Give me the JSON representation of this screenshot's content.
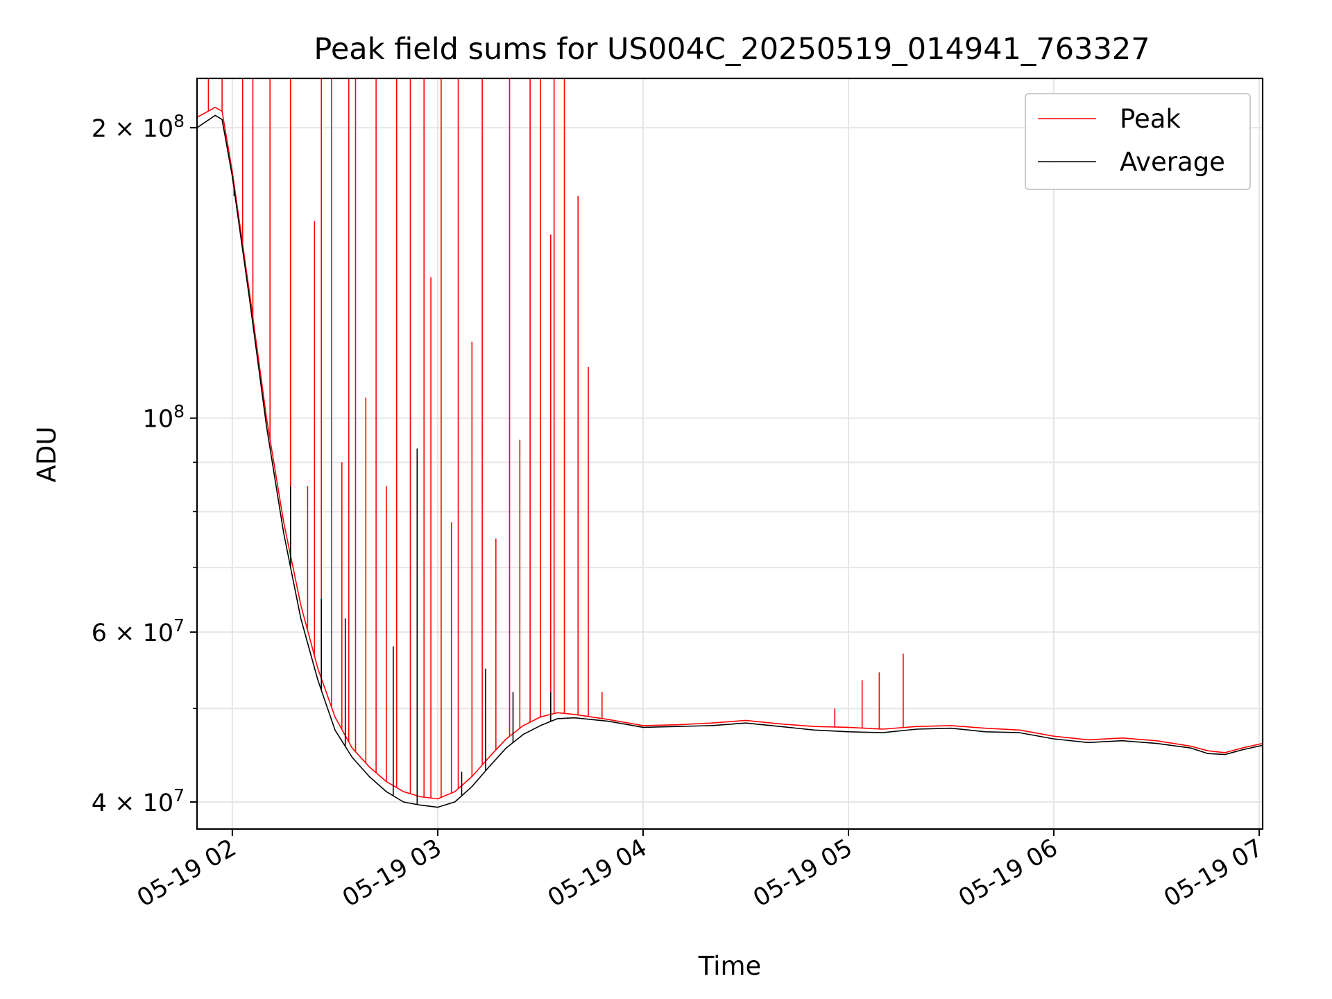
{
  "chart_data": {
    "type": "line",
    "title": "Peak field sums for US004C_20250519_014941_763327",
    "xlabel": "Time",
    "ylabel": "ADU",
    "yscale": "log",
    "xlim": [
      "2025-05-19 01:49:41",
      "2025-05-19 07:01:00"
    ],
    "ylim": [
      37500000,
      225000000
    ],
    "x_ticks": [
      {
        "t": "2025-05-19 02:00",
        "label": "05-19 02"
      },
      {
        "t": "2025-05-19 03:00",
        "label": "05-19 03"
      },
      {
        "t": "2025-05-19 04:00",
        "label": "05-19 04"
      },
      {
        "t": "2025-05-19 05:00",
        "label": "05-19 05"
      },
      {
        "t": "2025-05-19 06:00",
        "label": "05-19 06"
      },
      {
        "t": "2025-05-19 07:00",
        "label": "05-19 07"
      }
    ],
    "y_ticks_major": [
      {
        "v": 40000000,
        "base": "4 × 10",
        "exp": "7"
      },
      {
        "v": 60000000,
        "base": "6 × 10",
        "exp": "7"
      },
      {
        "v": 100000000,
        "base": "10",
        "exp": "8"
      },
      {
        "v": 200000000,
        "base": "2 × 10",
        "exp": "8"
      }
    ],
    "y_ticks_minor": [
      50000000,
      70000000,
      80000000,
      90000000
    ],
    "grid": true,
    "legend_position": "top-right",
    "series": [
      {
        "name": "Peak",
        "color": "#ff0000",
        "baseline": [
          [
            "2025-05-19 01:49:41",
            205000000
          ],
          [
            "2025-05-19 01:55",
            210000000
          ],
          [
            "2025-05-19 01:57",
            208000000
          ],
          [
            "2025-05-19 02:00",
            180000000
          ],
          [
            "2025-05-19 02:05",
            135000000
          ],
          [
            "2025-05-19 02:10",
            100000000
          ],
          [
            "2025-05-19 02:15",
            78000000
          ],
          [
            "2025-05-19 02:20",
            64000000
          ],
          [
            "2025-05-19 02:25",
            55000000
          ],
          [
            "2025-05-19 02:30",
            49000000
          ],
          [
            "2025-05-19 02:35",
            45500000
          ],
          [
            "2025-05-19 02:40",
            43500000
          ],
          [
            "2025-05-19 02:45",
            42000000
          ],
          [
            "2025-05-19 02:50",
            41000000
          ],
          [
            "2025-05-19 02:55",
            40500000
          ],
          [
            "2025-05-19 03:00",
            40300000
          ],
          [
            "2025-05-19 03:05",
            41000000
          ],
          [
            "2025-05-19 03:10",
            42500000
          ],
          [
            "2025-05-19 03:15",
            44500000
          ],
          [
            "2025-05-19 03:20",
            46500000
          ],
          [
            "2025-05-19 03:25",
            48000000
          ],
          [
            "2025-05-19 03:30",
            49000000
          ],
          [
            "2025-05-19 03:35",
            49500000
          ],
          [
            "2025-05-19 03:40",
            49300000
          ],
          [
            "2025-05-19 03:50",
            48700000
          ],
          [
            "2025-05-19 04:00",
            48000000
          ],
          [
            "2025-05-19 04:10",
            48100000
          ],
          [
            "2025-05-19 04:20",
            48300000
          ],
          [
            "2025-05-19 04:30",
            48600000
          ],
          [
            "2025-05-19 04:40",
            48200000
          ],
          [
            "2025-05-19 04:50",
            47900000
          ],
          [
            "2025-05-19 05:00",
            47800000
          ],
          [
            "2025-05-19 05:10",
            47600000
          ],
          [
            "2025-05-19 05:20",
            47900000
          ],
          [
            "2025-05-19 05:30",
            48000000
          ],
          [
            "2025-05-19 05:40",
            47700000
          ],
          [
            "2025-05-19 05:50",
            47500000
          ],
          [
            "2025-05-19 06:00",
            46800000
          ],
          [
            "2025-05-19 06:10",
            46400000
          ],
          [
            "2025-05-19 06:20",
            46600000
          ],
          [
            "2025-05-19 06:30",
            46300000
          ],
          [
            "2025-05-19 06:40",
            45700000
          ],
          [
            "2025-05-19 06:45",
            45200000
          ],
          [
            "2025-05-19 06:50",
            45000000
          ],
          [
            "2025-05-19 06:55",
            45500000
          ],
          [
            "2025-05-19 07:01",
            46000000
          ]
        ],
        "spikes": [
          [
            "2025-05-19 01:53",
            225000000
          ],
          [
            "2025-05-19 01:57",
            225000000
          ],
          [
            "2025-05-19 02:03",
            225000000
          ],
          [
            "2025-05-19 02:06",
            225000000
          ],
          [
            "2025-05-19 02:11",
            225000000
          ],
          [
            "2025-05-19 02:17",
            225000000
          ],
          [
            "2025-05-19 02:26",
            225000000
          ],
          [
            "2025-05-19 02:29",
            225000000
          ],
          [
            "2025-05-19 02:34",
            225000000
          ],
          [
            "2025-05-19 02:36",
            225000000
          ],
          [
            "2025-05-19 02:42",
            225000000
          ],
          [
            "2025-05-19 02:48",
            225000000
          ],
          [
            "2025-05-19 02:52",
            225000000
          ],
          [
            "2025-05-19 02:56",
            225000000
          ],
          [
            "2025-05-19 03:01",
            225000000
          ],
          [
            "2025-05-19 03:06",
            225000000
          ],
          [
            "2025-05-19 03:13",
            225000000
          ],
          [
            "2025-05-19 03:21",
            225000000
          ],
          [
            "2025-05-19 03:27",
            225000000
          ],
          [
            "2025-05-19 03:30",
            225000000
          ],
          [
            "2025-05-19 03:34",
            225000000
          ],
          [
            "2025-05-19 03:37",
            225000000
          ],
          [
            "2025-05-19 02:24",
            160000000
          ],
          [
            "2025-05-19 02:39",
            105000000
          ],
          [
            "2025-05-19 02:58",
            140000000
          ],
          [
            "2025-05-19 03:10",
            120000000
          ],
          [
            "2025-05-19 03:24",
            95000000
          ],
          [
            "2025-05-19 03:33",
            155000000
          ],
          [
            "2025-05-19 03:41",
            170000000
          ],
          [
            "2025-05-19 03:44",
            113000000
          ],
          [
            "2025-05-19 02:22",
            85000000
          ],
          [
            "2025-05-19 02:32",
            90000000
          ],
          [
            "2025-05-19 02:45",
            85000000
          ],
          [
            "2025-05-19 03:04",
            78000000
          ],
          [
            "2025-05-19 03:17",
            75000000
          ],
          [
            "2025-05-19 03:48",
            52000000
          ],
          [
            "2025-05-19 04:56",
            50000000
          ],
          [
            "2025-05-19 05:04",
            53500000
          ],
          [
            "2025-05-19 05:09",
            54500000
          ],
          [
            "2025-05-19 05:16",
            57000000
          ]
        ]
      },
      {
        "name": "Average",
        "color": "#000000",
        "baseline": [
          [
            "2025-05-19 01:49:41",
            200000000
          ],
          [
            "2025-05-19 01:55",
            206000000
          ],
          [
            "2025-05-19 01:57",
            204000000
          ],
          [
            "2025-05-19 02:00",
            178000000
          ],
          [
            "2025-05-19 02:05",
            133000000
          ],
          [
            "2025-05-19 02:10",
            98000000
          ],
          [
            "2025-05-19 02:15",
            76000000
          ],
          [
            "2025-05-19 02:20",
            62000000
          ],
          [
            "2025-05-19 02:25",
            53500000
          ],
          [
            "2025-05-19 02:30",
            47500000
          ],
          [
            "2025-05-19 02:35",
            44500000
          ],
          [
            "2025-05-19 02:40",
            42500000
          ],
          [
            "2025-05-19 02:45",
            41000000
          ],
          [
            "2025-05-19 02:50",
            40000000
          ],
          [
            "2025-05-19 02:55",
            39700000
          ],
          [
            "2025-05-19 03:00",
            39500000
          ],
          [
            "2025-05-19 03:05",
            40000000
          ],
          [
            "2025-05-19 03:10",
            41500000
          ],
          [
            "2025-05-19 03:15",
            43500000
          ],
          [
            "2025-05-19 03:20",
            45500000
          ],
          [
            "2025-05-19 03:25",
            47000000
          ],
          [
            "2025-05-19 03:30",
            48000000
          ],
          [
            "2025-05-19 03:35",
            48800000
          ],
          [
            "2025-05-19 03:40",
            48900000
          ],
          [
            "2025-05-19 03:50",
            48500000
          ],
          [
            "2025-05-19 04:00",
            47800000
          ],
          [
            "2025-05-19 04:10",
            47900000
          ],
          [
            "2025-05-19 04:20",
            48000000
          ],
          [
            "2025-05-19 04:30",
            48300000
          ],
          [
            "2025-05-19 04:40",
            47900000
          ],
          [
            "2025-05-19 04:50",
            47500000
          ],
          [
            "2025-05-19 05:00",
            47300000
          ],
          [
            "2025-05-19 05:10",
            47200000
          ],
          [
            "2025-05-19 05:20",
            47600000
          ],
          [
            "2025-05-19 05:30",
            47700000
          ],
          [
            "2025-05-19 05:40",
            47300000
          ],
          [
            "2025-05-19 05:50",
            47200000
          ],
          [
            "2025-05-19 06:00",
            46500000
          ],
          [
            "2025-05-19 06:10",
            46100000
          ],
          [
            "2025-05-19 06:20",
            46300000
          ],
          [
            "2025-05-19 06:30",
            46000000
          ],
          [
            "2025-05-19 06:40",
            45500000
          ],
          [
            "2025-05-19 06:45",
            44900000
          ],
          [
            "2025-05-19 06:50",
            44800000
          ],
          [
            "2025-05-19 06:55",
            45300000
          ],
          [
            "2025-05-19 07:01",
            45800000
          ]
        ],
        "spikes": [
          [
            "2025-05-19 02:00:30",
            170000000
          ],
          [
            "2025-05-19 02:17",
            85000000
          ],
          [
            "2025-05-19 02:26",
            65000000
          ],
          [
            "2025-05-19 02:33",
            62000000
          ],
          [
            "2025-05-19 02:47",
            58000000
          ],
          [
            "2025-05-19 02:54",
            93000000
          ],
          [
            "2025-05-19 03:07",
            43000000
          ],
          [
            "2025-05-19 03:14",
            55000000
          ],
          [
            "2025-05-19 03:22",
            52000000
          ],
          [
            "2025-05-19 03:33",
            52000000
          ]
        ]
      }
    ]
  }
}
